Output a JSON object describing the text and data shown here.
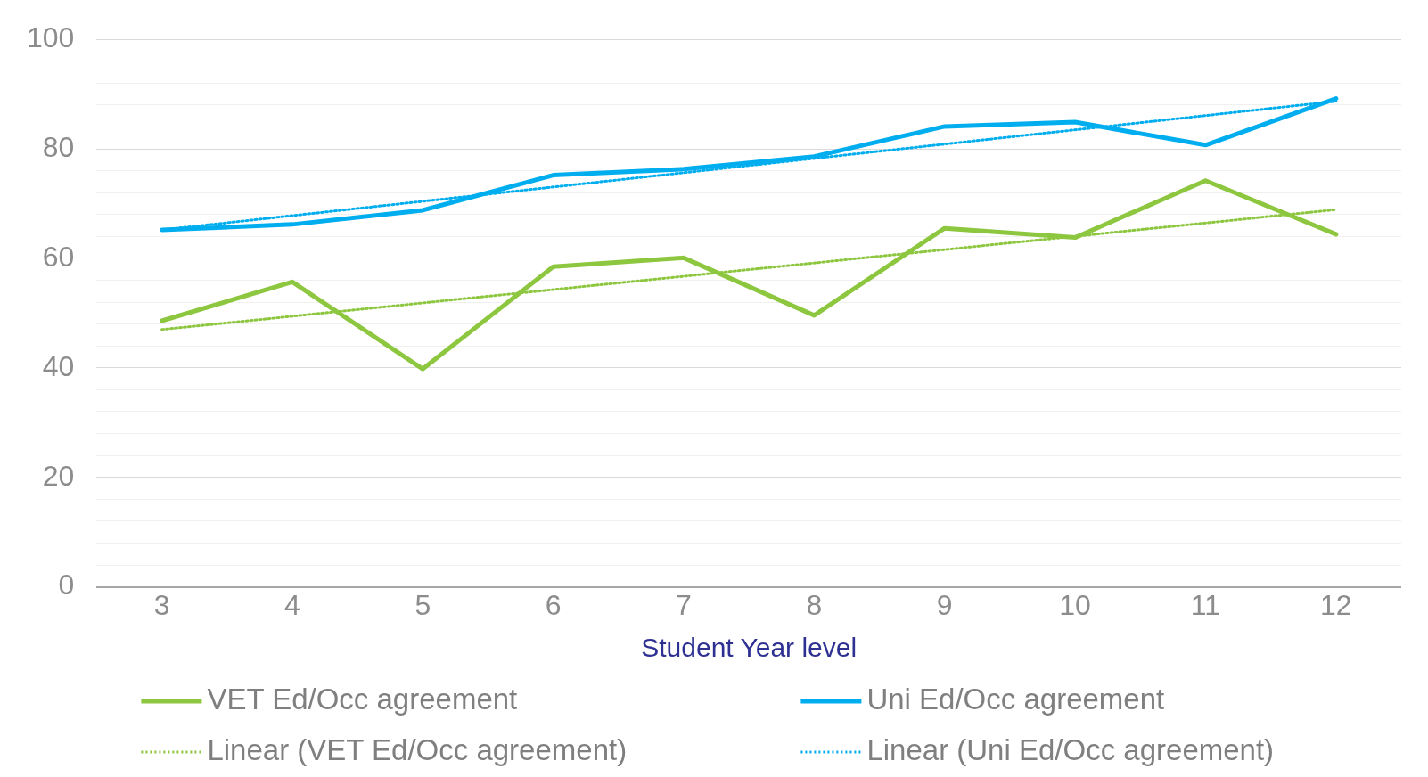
{
  "chart_data": {
    "type": "line",
    "xlabel": "Student Year level",
    "x": [
      3,
      4,
      5,
      6,
      7,
      8,
      9,
      10,
      11,
      12
    ],
    "xlim": [
      2.5,
      12.5
    ],
    "xticks": [
      3,
      4,
      5,
      6,
      7,
      8,
      9,
      10,
      11,
      12
    ],
    "ylim": [
      0,
      100
    ],
    "yticks": [
      0,
      {
        "value": 4,
        "label": null
      },
      {
        "value": 8,
        "label": null
      },
      {
        "value": 12,
        "label": null
      },
      {
        "value": 16,
        "label": null
      },
      20,
      {
        "value": 24,
        "label": null
      },
      {
        "value": 28,
        "label": null
      },
      {
        "value": 32,
        "label": null
      },
      {
        "value": 36,
        "label": null
      },
      40,
      {
        "value": 44,
        "label": null
      },
      {
        "value": 48,
        "label": null
      },
      {
        "value": 52,
        "label": null
      },
      {
        "value": 56,
        "label": null
      },
      60,
      {
        "value": 64,
        "label": null
      },
      {
        "value": 68,
        "label": null
      },
      {
        "value": 72,
        "label": null
      },
      {
        "value": 76,
        "label": null
      },
      80,
      {
        "value": 84,
        "label": null
      },
      {
        "value": 88,
        "label": null
      },
      {
        "value": 92,
        "label": null
      },
      {
        "value": 96,
        "label": null
      },
      100
    ],
    "grid": "y",
    "legend": "bottom",
    "marker": "none",
    "series": [
      {
        "name": "VET Ed/Occ agreement",
        "color": "#8dc63f",
        "line_style": "solid",
        "values": [
          48.6,
          55.7,
          39.8,
          58.5,
          60.1,
          49.6,
          65.5,
          63.8,
          74.2,
          64.4
        ]
      },
      {
        "name": "Uni Ed/Occ agreement",
        "color": "#00aeef",
        "line_style": "solid",
        "values": [
          65.2,
          66.2,
          68.8,
          75.2,
          76.3,
          78.6,
          84.1,
          84.9,
          80.7,
          89.2
        ]
      },
      {
        "name": "Linear (VET Ed/Occ agreement)",
        "color": "#8dc63f",
        "line_style": "dotted",
        "values": [
          47.0,
          null,
          null,
          null,
          null,
          null,
          null,
          null,
          null,
          68.9
        ]
      },
      {
        "name": "Linear (Uni Ed/Occ agreement)",
        "color": "#00aeef",
        "line_style": "dotted",
        "values": [
          65.2,
          null,
          null,
          null,
          null,
          null,
          null,
          null,
          null,
          88.7
        ]
      }
    ]
  }
}
